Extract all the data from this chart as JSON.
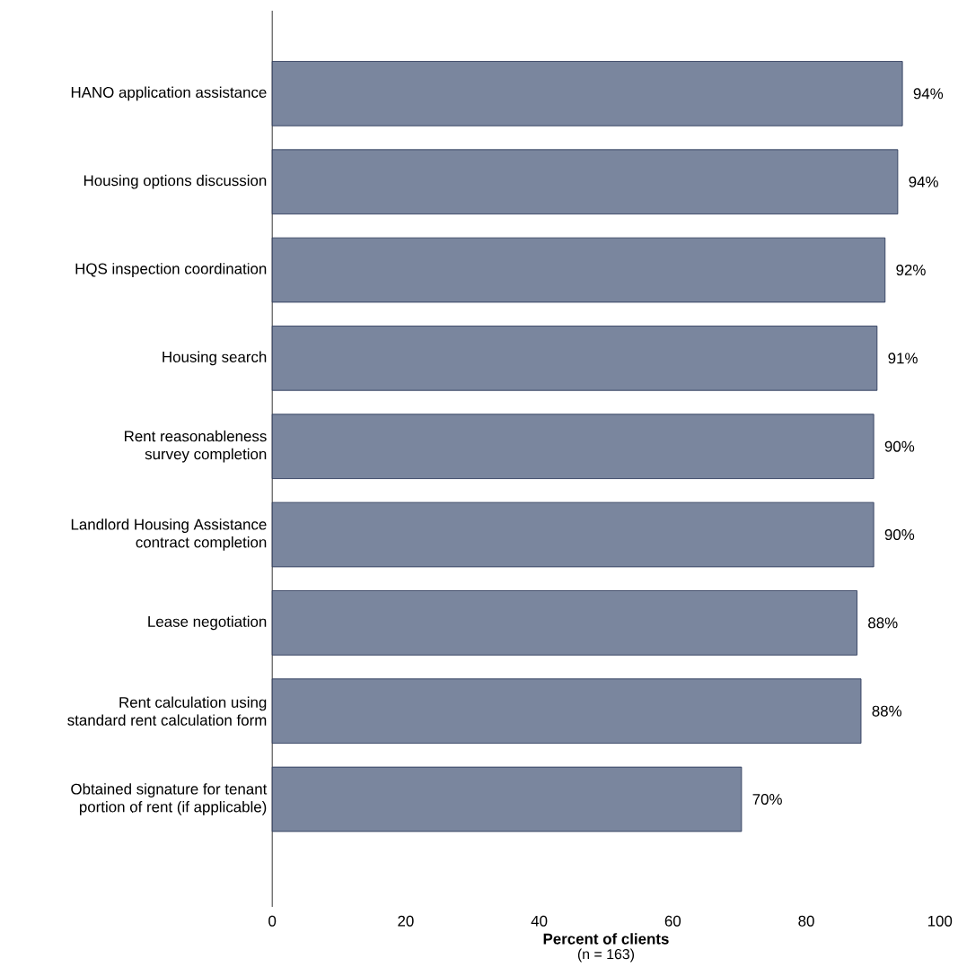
{
  "chart_data": {
    "type": "bar",
    "orientation": "horizontal",
    "categories": [
      "HANO application assistance",
      "Housing options discussion",
      "HQS inspection coordination",
      "Housing search",
      "Rent reasonableness\nsurvey completion",
      "Landlord Housing Assistance\ncontract completion",
      "Lease negotiation",
      "Rent calculation using\nstandard rent calculation form",
      "Obtained signature for tenant\nportion of rent (if applicable)"
    ],
    "values": [
      94.4,
      93.7,
      91.8,
      90.6,
      90.1,
      90.1,
      87.6,
      88.2,
      70.3
    ],
    "value_labels": [
      "94%",
      "94%",
      "92%",
      "91%",
      "90%",
      "90%",
      "88%",
      "88%",
      "70%"
    ],
    "color": "#7a869e",
    "xlim": [
      0,
      100
    ],
    "xticks": [
      0,
      20,
      40,
      60,
      80,
      100
    ],
    "xlabel": "Percent of clients",
    "annotations": [
      "(n = 163)"
    ],
    "grid": false
  }
}
